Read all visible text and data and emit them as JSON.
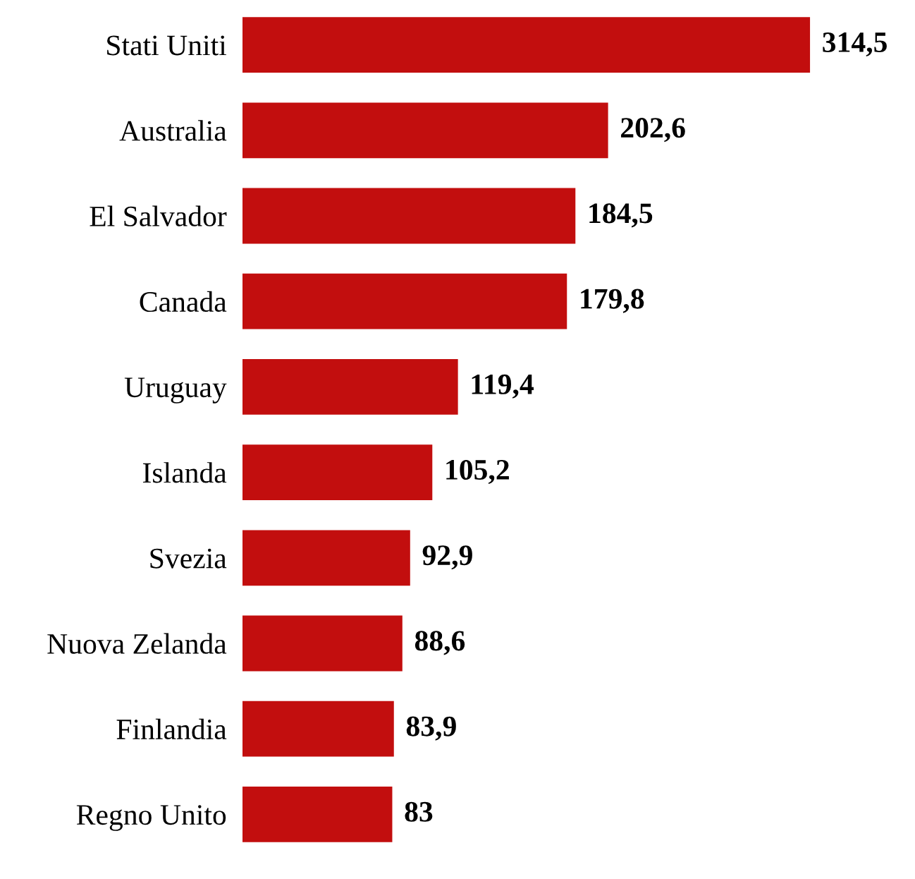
{
  "chart_data": {
    "type": "bar",
    "orientation": "horizontal",
    "categories": [
      "Stati Uniti",
      "Australia",
      "El Salvador",
      "Canada",
      "Uruguay",
      "Islanda",
      "Svezia",
      "Nuova Zelanda",
      "Finlandia",
      "Regno Unito"
    ],
    "values": [
      314.5,
      202.6,
      184.5,
      179.8,
      119.4,
      105.2,
      92.9,
      88.6,
      83.9,
      83
    ],
    "value_labels": [
      "314,5",
      "202,6",
      "184,5",
      "179,8",
      "119,4",
      "105,2",
      "92,9",
      "88,6",
      "83,9",
      "83"
    ],
    "color": "#c20e0e",
    "grid": false,
    "legend": false,
    "tick_labels": "y"
  }
}
